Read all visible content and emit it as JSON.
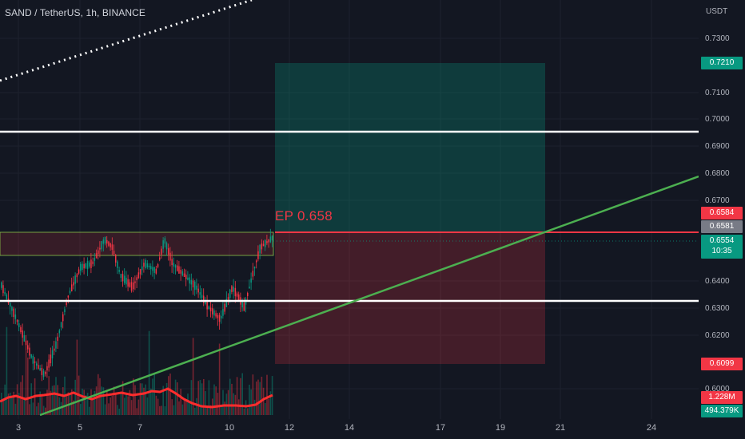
{
  "header": {
    "symbol_title": "SAND / TetherUS, 1h, BINANCE"
  },
  "annotation": {
    "entry_label": "EP 0.658"
  },
  "price_axis": {
    "currency": "USDT",
    "ticks": [
      "0.7300",
      "0.7100",
      "0.7000",
      "0.6900",
      "0.6800",
      "0.6700",
      "0.6400",
      "0.6300",
      "0.6200",
      "0.6000"
    ],
    "badges": {
      "target": {
        "value": "0.7210",
        "color": "#089981"
      },
      "stop_line": {
        "value": "0.6584",
        "color": "#f23645"
      },
      "last_marker": {
        "value": "0.6581",
        "color": "#787b86"
      },
      "current": {
        "value": "0.6554",
        "countdown": "10:35",
        "color": "#089981"
      },
      "stop": {
        "value": "0.6099",
        "color": "#f23645"
      },
      "volume_ma": {
        "value": "1.228M",
        "color": "#f23645"
      },
      "volume": {
        "value": "494.379K",
        "color": "#089981"
      }
    }
  },
  "time_axis": {
    "labels": [
      "3",
      "5",
      "7",
      "10",
      "12",
      "14",
      "17",
      "19",
      "21",
      "24"
    ]
  },
  "colors": {
    "background": "#131722",
    "up": "#089981",
    "down": "#f23645",
    "support_line": "#ffffff",
    "trend_line": "#4caf50",
    "dotted_line": "#ffffff",
    "volume_ma": "#ff2d2d"
  },
  "chart_data": {
    "type": "candlestick",
    "symbol": "SAND / TetherUS",
    "interval": "1h",
    "exchange": "BINANCE",
    "y_range": [
      0.595,
      0.742
    ],
    "horizontal_levels": [
      0.6952,
      0.633
    ],
    "zone_band": [
      0.6504,
      0.659
    ],
    "entry_price": 0.658,
    "position": {
      "entry": 0.6584,
      "target": 0.721,
      "stop": 0.6099
    },
    "last_price": 0.6554
  }
}
